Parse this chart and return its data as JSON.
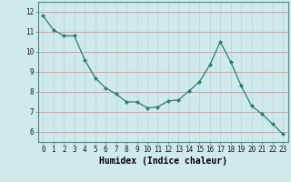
{
  "x": [
    0,
    1,
    2,
    3,
    4,
    5,
    6,
    7,
    8,
    9,
    10,
    11,
    12,
    13,
    14,
    15,
    16,
    17,
    18,
    19,
    20,
    21,
    22,
    23
  ],
  "y": [
    11.8,
    11.1,
    10.8,
    10.8,
    9.6,
    8.7,
    8.2,
    7.9,
    7.5,
    7.5,
    7.2,
    7.25,
    7.55,
    7.6,
    8.05,
    8.5,
    9.35,
    10.5,
    9.5,
    8.3,
    7.3,
    6.9,
    6.4,
    5.9
  ],
  "line_color": "#2e7d6e",
  "marker": "D",
  "marker_size": 2.0,
  "bg_color": "#ceeaea",
  "grid_color_major": "#c8aaaa",
  "grid_color_minor": "#c8d8d8",
  "xlabel": "Humidex (Indice chaleur)",
  "xlim": [
    -0.5,
    23.5
  ],
  "ylim": [
    5.5,
    12.5
  ],
  "yticks": [
    6,
    7,
    8,
    9,
    10,
    11,
    12
  ],
  "xticks": [
    0,
    1,
    2,
    3,
    4,
    5,
    6,
    7,
    8,
    9,
    10,
    11,
    12,
    13,
    14,
    15,
    16,
    17,
    18,
    19,
    20,
    21,
    22,
    23
  ],
  "tick_fontsize": 5.5,
  "label_fontsize": 7.0
}
